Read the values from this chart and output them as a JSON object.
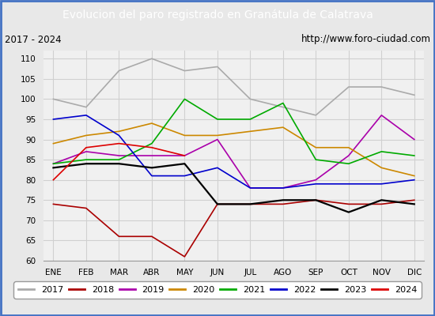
{
  "title": "Evolucion del paro registrado en Granátula de Calatrava",
  "subtitle_left": "2017 - 2024",
  "subtitle_right": "http://www.foro-ciudad.com",
  "title_bg_color": "#4472c4",
  "title_text_color": "#ffffff",
  "ylim": [
    60,
    112
  ],
  "yticks": [
    60,
    65,
    70,
    75,
    80,
    85,
    90,
    95,
    100,
    105,
    110
  ],
  "months": [
    "ENE",
    "FEB",
    "MAR",
    "ABR",
    "MAY",
    "JUN",
    "JUL",
    "AGO",
    "SEP",
    "OCT",
    "NOV",
    "DIC"
  ],
  "series": {
    "2017": {
      "color": "#aaaaaa",
      "linewidth": 1.2,
      "data": [
        100,
        98,
        107,
        110,
        107,
        108,
        100,
        98,
        96,
        103,
        103,
        101
      ]
    },
    "2018": {
      "color": "#aa0000",
      "linewidth": 1.2,
      "data": [
        74,
        73,
        66,
        66,
        61,
        74,
        74,
        74,
        75,
        74,
        74,
        75
      ]
    },
    "2019": {
      "color": "#aa00aa",
      "linewidth": 1.2,
      "data": [
        84,
        87,
        86,
        86,
        86,
        90,
        78,
        78,
        80,
        86,
        96,
        90
      ]
    },
    "2020": {
      "color": "#cc8800",
      "linewidth": 1.2,
      "data": [
        89,
        91,
        92,
        94,
        91,
        91,
        92,
        93,
        88,
        88,
        83,
        81
      ]
    },
    "2021": {
      "color": "#00aa00",
      "linewidth": 1.2,
      "data": [
        84,
        85,
        85,
        89,
        100,
        95,
        95,
        99,
        85,
        84,
        87,
        86
      ]
    },
    "2022": {
      "color": "#0000cc",
      "linewidth": 1.2,
      "data": [
        95,
        96,
        91,
        81,
        81,
        83,
        78,
        78,
        79,
        79,
        79,
        80
      ]
    },
    "2023": {
      "color": "#000000",
      "linewidth": 1.6,
      "data": [
        83,
        84,
        84,
        83,
        84,
        74,
        74,
        75,
        75,
        72,
        75,
        74
      ]
    },
    "2024": {
      "color": "#dd0000",
      "linewidth": 1.2,
      "data": [
        80,
        88,
        89,
        88,
        86,
        null,
        null,
        null,
        null,
        null,
        null,
        null
      ]
    }
  },
  "background_color": "#e8e8e8",
  "plot_bg_color": "#f0f0f0",
  "grid_color": "#d0d0d0"
}
